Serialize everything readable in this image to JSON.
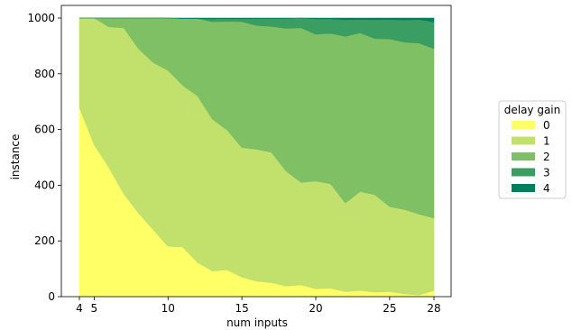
{
  "chart_data": {
    "type": "area",
    "stacked": true,
    "xlabel": "num inputs",
    "ylabel": "instance",
    "xlim": [
      4,
      28
    ],
    "ylim": [
      0,
      1000
    ],
    "xticks": [
      4,
      5,
      10,
      15,
      20,
      25,
      28
    ],
    "yticks": [
      0,
      200,
      400,
      600,
      800,
      1000
    ],
    "grid": false,
    "legend": {
      "title": "delay gain",
      "placement": "right"
    },
    "x": [
      4,
      5,
      6,
      7,
      8,
      9,
      10,
      11,
      12,
      13,
      14,
      15,
      16,
      17,
      18,
      19,
      20,
      21,
      22,
      23,
      24,
      25,
      26,
      27,
      28
    ],
    "series": [
      {
        "name": "0",
        "color": "#ffff66",
        "values": [
          678,
          545,
          463,
          369,
          300,
          240,
          180,
          178,
          122,
          92,
          96,
          70,
          55,
          50,
          38,
          42,
          28,
          30,
          18,
          22,
          16,
          18,
          10,
          6,
          22
        ]
      },
      {
        "name": "1",
        "color": "#c1e06c",
        "values": [
          322,
          455,
          505,
          596,
          590,
          600,
          632,
          580,
          598,
          545,
          502,
          465,
          474,
          468,
          412,
          368,
          387,
          375,
          318,
          355,
          350,
          305,
          303,
          290,
          260
        ]
      },
      {
        "name": "2",
        "color": "#7fc064",
        "values": [
          0,
          0,
          32,
          35,
          110,
          160,
          188,
          240,
          278,
          350,
          390,
          452,
          444,
          452,
          513,
          555,
          527,
          540,
          598,
          570,
          560,
          602,
          600,
          614,
          608
        ]
      },
      {
        "name": "3",
        "color": "#3a9d62",
        "values": [
          0,
          0,
          0,
          0,
          0,
          0,
          0,
          0,
          0,
          10,
          10,
          10,
          25,
          28,
          35,
          35,
          55,
          52,
          60,
          48,
          68,
          70,
          80,
          85,
          96
        ]
      },
      {
        "name": "4",
        "color": "#007f5f",
        "values": [
          0,
          0,
          0,
          0,
          0,
          0,
          0,
          2,
          2,
          3,
          2,
          3,
          2,
          2,
          2,
          0,
          3,
          3,
          6,
          5,
          6,
          5,
          7,
          5,
          14
        ]
      }
    ]
  }
}
